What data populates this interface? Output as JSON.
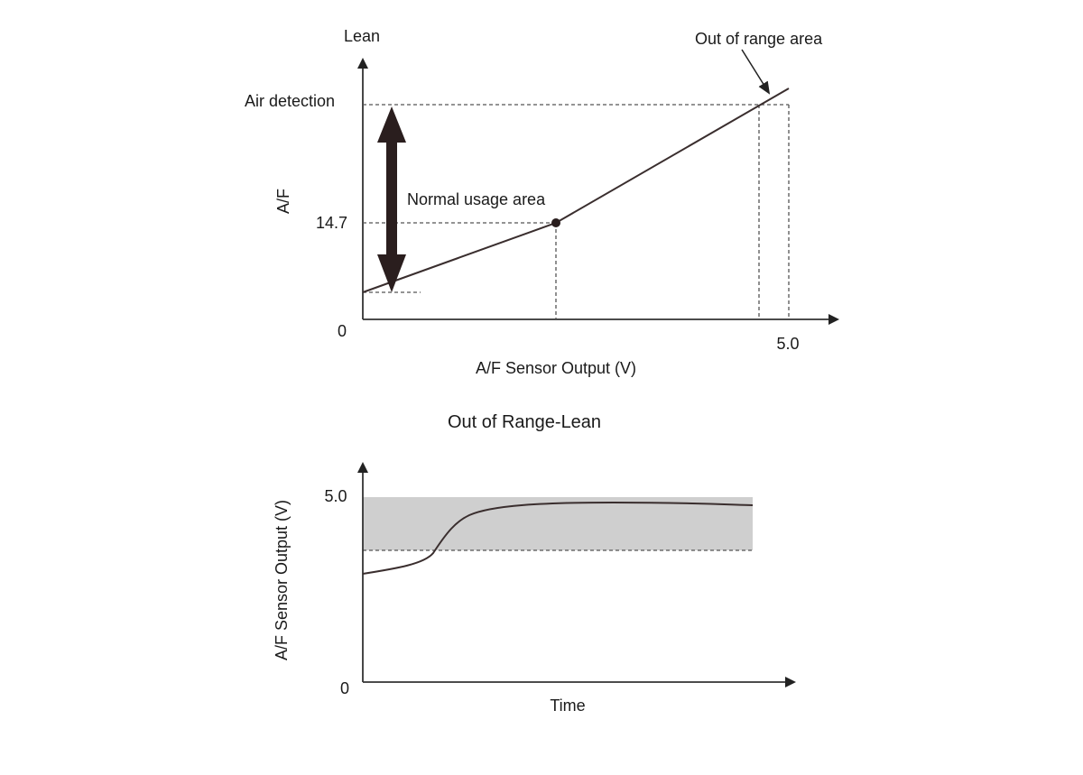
{
  "top_chart": {
    "y_axis_top_label": "Lean",
    "y_axis_label": "A/F",
    "x_axis_label": "A/F Sensor Output (V)",
    "origin_label": "0",
    "y_tick_stoich": "14.7",
    "y_label_air": "Air detection",
    "x_tick_max": "5.0",
    "annotation_normal": "Normal usage area",
    "annotation_out_of_range": "Out of range area"
  },
  "bottom_chart": {
    "title": "Out of Range-Lean",
    "y_axis_label": "A/F Sensor Output (V)",
    "x_axis_label": "Time",
    "origin_label": "0",
    "y_tick_max": "5.0"
  },
  "colors": {
    "line": "#3a2e2e",
    "arrow": "#2a1e1e",
    "shade": "#cfcfcf",
    "dash": "#555555"
  }
}
